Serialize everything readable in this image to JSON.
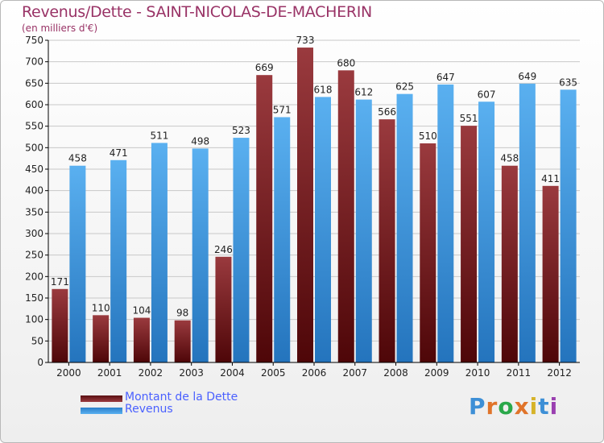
{
  "title": "Revenus/Dette - SAINT-NICOLAS-DE-MACHERIN",
  "subtitle": "(en milliers d'€)",
  "colors": {
    "dette": "#7a1f24",
    "revenus": "#3a97e0",
    "axis": "#000000",
    "grid": "#c8c8c8"
  },
  "chart_data": {
    "type": "bar",
    "categories": [
      "2000",
      "2001",
      "2002",
      "2003",
      "2004",
      "2005",
      "2006",
      "2007",
      "2008",
      "2009",
      "2010",
      "2011",
      "2012"
    ],
    "series": [
      {
        "name": "Montant de la Dette",
        "values": [
          171,
          110,
          104,
          98,
          246,
          669,
          733,
          680,
          566,
          510,
          551,
          458,
          411
        ]
      },
      {
        "name": "Revenus",
        "values": [
          458,
          471,
          511,
          498,
          523,
          571,
          618,
          612,
          625,
          647,
          607,
          649,
          635
        ]
      }
    ],
    "ylim": [
      0,
      750
    ],
    "yticks": [
      0,
      50,
      100,
      150,
      200,
      250,
      300,
      350,
      400,
      450,
      500,
      550,
      600,
      650,
      700,
      750
    ],
    "grid": true,
    "legend_position": "bottom-left"
  },
  "legend": {
    "items": [
      "Montant de la Dette",
      "Revenus"
    ]
  },
  "logo": {
    "text": "Proxiti"
  }
}
